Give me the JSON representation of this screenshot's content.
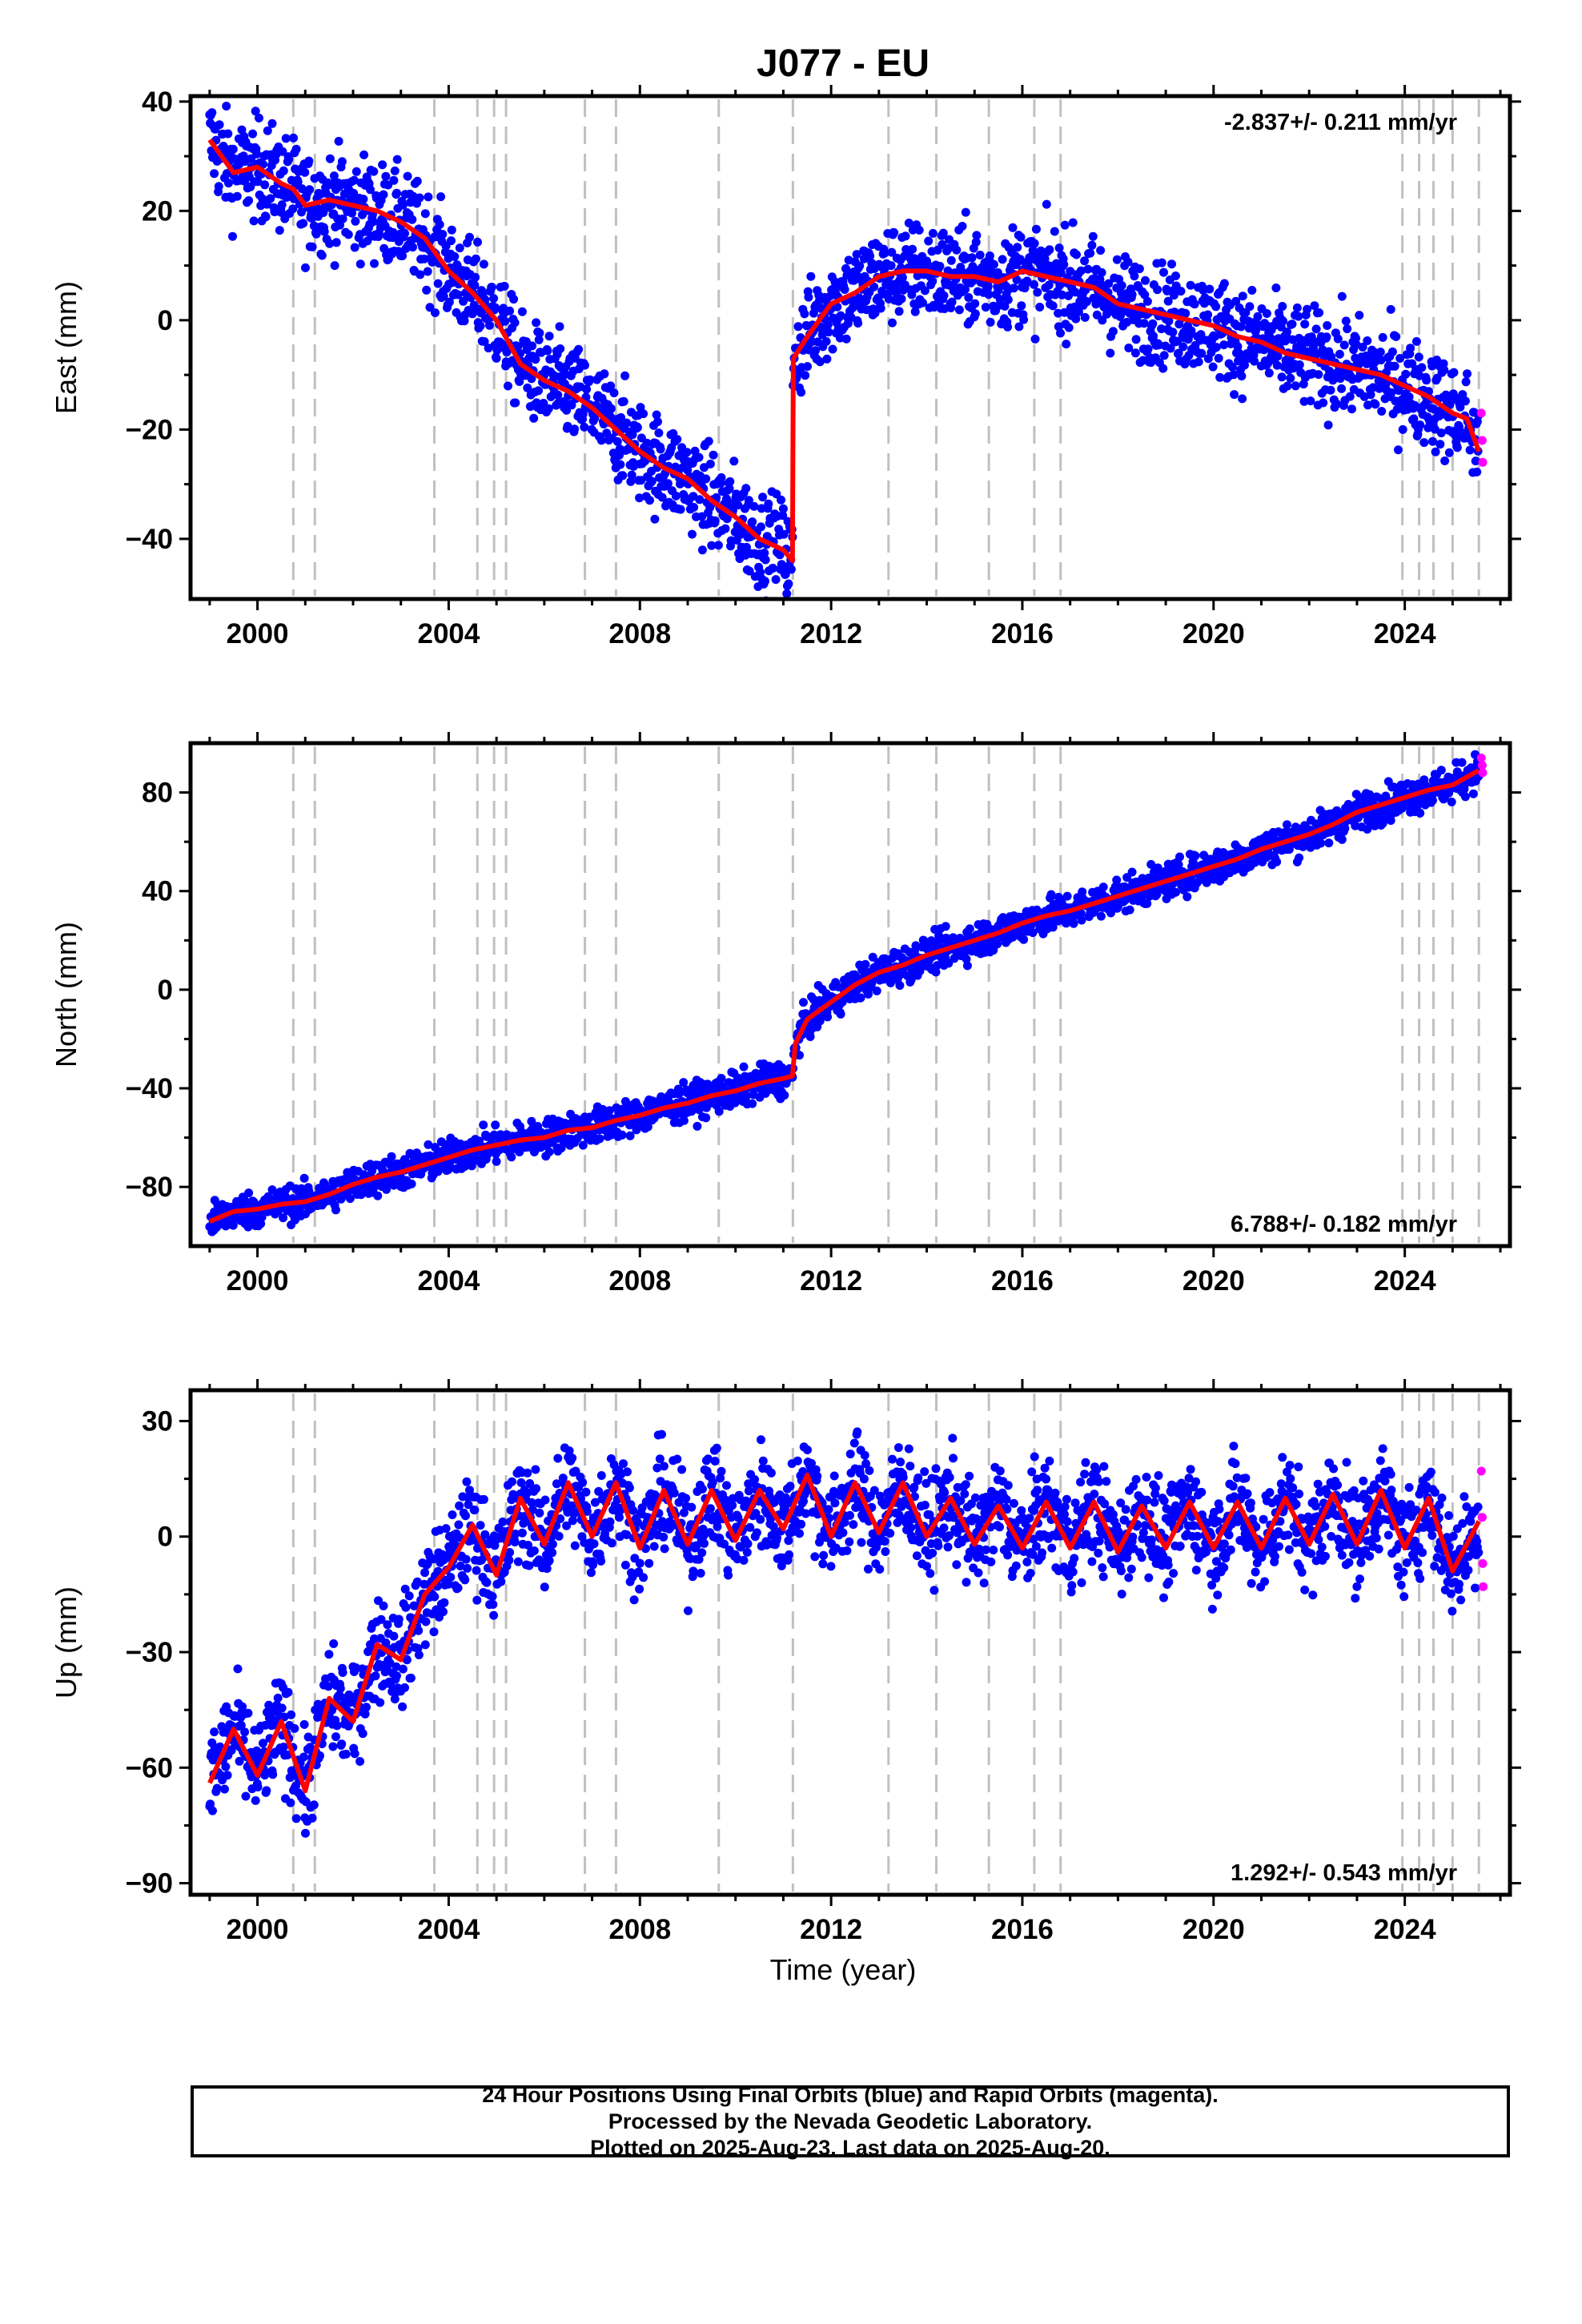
{
  "chart_data": {
    "type": "scatter",
    "title": "J077 - EU",
    "xlabel": "Time (year)",
    "xlim": [
      1998.6,
      2026.2
    ],
    "xticks": [
      2000,
      2004,
      2008,
      2012,
      2016,
      2020,
      2024
    ],
    "xtick_labels": [
      "2000",
      "2004",
      "2008",
      "2012",
      "2016",
      "2020",
      "2024"
    ],
    "event_lines": [
      2000.75,
      2001.2,
      2003.7,
      2004.6,
      2004.95,
      2005.2,
      2006.85,
      2007.5,
      2009.65,
      2011.2,
      2013.2,
      2014.2,
      2015.3,
      2016.25,
      2016.8,
      2023.95,
      2024.3,
      2024.6,
      2025.0,
      2025.55
    ],
    "colors": {
      "final": "#0000ff",
      "rapid": "#ff00ff",
      "model": "#ff0000",
      "event": "#c0c0c0"
    },
    "legend": "none",
    "grid": false,
    "panels": [
      {
        "ylabel": "East (mm)",
        "ylim": [
          -51,
          41
        ],
        "yticks": [
          40,
          20,
          0,
          -20,
          -40
        ],
        "ytick_labels": [
          "40",
          "20",
          "0",
          "−20",
          "−40"
        ],
        "rate_label": "-2.837+/- 0.211 mm/yr",
        "rate_position": "top-right",
        "series": [
          {
            "kind": "final",
            "x": [
              1999.0,
              1999.5,
              2000.0,
              2000.5,
              2000.75,
              2001.0,
              2001.5,
              2002.0,
              2002.5,
              2003.0,
              2003.5,
              2004.0,
              2004.5,
              2005.0,
              2005.5,
              2006.0,
              2006.5,
              2007.0,
              2007.5,
              2008.0,
              2008.5,
              2009.0,
              2009.5,
              2010.0,
              2010.5,
              2011.0,
              2011.19,
              2011.21,
              2011.5,
              2012.0,
              2012.5,
              2013.0,
              2013.5,
              2014.0,
              2014.5,
              2015.0,
              2015.5,
              2016.0,
              2016.5,
              2017.0,
              2017.5,
              2018.0,
              2018.5,
              2019.0,
              2019.5,
              2020.0,
              2020.5,
              2021.0,
              2021.5,
              2022.0,
              2022.5,
              2023.0,
              2023.5,
              2024.0,
              2024.5,
              2025.0,
              2025.3,
              2025.55
            ],
            "y": [
              33,
              27,
              28,
              25,
              24,
              21,
              22,
              21,
              20,
              18,
              15,
              9,
              5,
              0,
              -8,
              -11,
              -13,
              -16,
              -20,
              -24,
              -27,
              -29,
              -33,
              -36,
              -40,
              -42,
              -44,
              -7,
              -3,
              3,
              5,
              8,
              9,
              9,
              8,
              8,
              7,
              9,
              8,
              7,
              6,
              3,
              2,
              1,
              0,
              -1,
              -3,
              -4,
              -6,
              -7,
              -8,
              -9,
              -10,
              -12,
              -14,
              -17,
              -18,
              -24
            ]
          },
          {
            "kind": "rapid",
            "x": [
              2025.6,
              2025.62,
              2025.63
            ],
            "y": [
              -17,
              -22,
              -26
            ]
          }
        ]
      },
      {
        "ylabel": "North (mm)",
        "ylim": [
          -104,
          100
        ],
        "yticks": [
          80,
          40,
          0,
          -40,
          -80
        ],
        "ytick_labels": [
          "80",
          "40",
          "0",
          "−40",
          "−80"
        ],
        "rate_label": "6.788+/- 0.182 mm/yr",
        "rate_position": "bottom-right",
        "series": [
          {
            "kind": "final",
            "x": [
              1999.0,
              1999.5,
              2000.0,
              2000.5,
              2001.0,
              2001.5,
              2002.0,
              2002.5,
              2003.0,
              2003.5,
              2004.0,
              2004.5,
              2005.0,
              2005.5,
              2006.0,
              2006.5,
              2007.0,
              2007.5,
              2008.0,
              2008.5,
              2009.0,
              2009.5,
              2010.0,
              2010.5,
              2011.0,
              2011.19,
              2011.25,
              2011.5,
              2012.0,
              2012.5,
              2013.0,
              2013.5,
              2014.0,
              2014.5,
              2015.0,
              2015.5,
              2016.0,
              2016.5,
              2017.0,
              2017.5,
              2018.0,
              2018.5,
              2019.0,
              2019.5,
              2020.0,
              2020.5,
              2021.0,
              2021.5,
              2022.0,
              2022.5,
              2023.0,
              2023.5,
              2024.0,
              2024.5,
              2025.0,
              2025.55
            ],
            "y": [
              -94,
              -90,
              -89,
              -87,
              -86,
              -83,
              -79,
              -76,
              -74,
              -71,
              -68,
              -65,
              -63,
              -61,
              -60,
              -57,
              -56,
              -53,
              -51,
              -48,
              -46,
              -43,
              -41,
              -38,
              -36,
              -35,
              -22,
              -12,
              -5,
              2,
              7,
              10,
              14,
              17,
              20,
              23,
              27,
              30,
              32,
              35,
              38,
              41,
              44,
              47,
              50,
              53,
              57,
              60,
              63,
              67,
              72,
              75,
              78,
              81,
              83,
              89
            ]
          },
          {
            "kind": "rapid",
            "x": [
              2025.6,
              2025.62,
              2025.63
            ],
            "y": [
              94,
              91,
              88
            ]
          }
        ]
      },
      {
        "ylabel": "Up (mm)",
        "ylim": [
          -93,
          38
        ],
        "yticks": [
          30,
          0,
          -30,
          -60,
          -90
        ],
        "ytick_labels": [
          "30",
          "0",
          "−30",
          "−60",
          "−90"
        ],
        "rate_label": "1.292+/- 0.543 mm/yr",
        "rate_position": "bottom-right",
        "series": [
          {
            "kind": "final",
            "x": [
              1999.0,
              1999.5,
              2000.0,
              2000.5,
              2001.0,
              2001.5,
              2002.0,
              2002.5,
              2003.0,
              2003.5,
              2004.0,
              2004.5,
              2005.0,
              2005.5,
              2006.0,
              2006.5,
              2007.0,
              2007.5,
              2008.0,
              2008.5,
              2009.0,
              2009.5,
              2010.0,
              2010.5,
              2011.0,
              2011.5,
              2012.0,
              2012.5,
              2013.0,
              2013.5,
              2014.0,
              2014.5,
              2015.0,
              2015.5,
              2016.0,
              2016.5,
              2017.0,
              2017.5,
              2018.0,
              2018.5,
              2019.0,
              2019.5,
              2020.0,
              2020.5,
              2021.0,
              2021.5,
              2022.0,
              2022.5,
              2023.0,
              2023.5,
              2024.0,
              2024.5,
              2025.0,
              2025.55
            ],
            "y": [
              -64,
              -50,
              -62,
              -48,
              -66,
              -42,
              -48,
              -28,
              -32,
              -15,
              -8,
              3,
              -10,
              10,
              -2,
              14,
              0,
              14,
              -3,
              12,
              -2,
              12,
              -1,
              12,
              2,
              16,
              0,
              14,
              1,
              14,
              0,
              10,
              -2,
              8,
              -3,
              9,
              -3,
              9,
              -4,
              8,
              -3,
              9,
              -3,
              9,
              -3,
              10,
              -2,
              11,
              -2,
              12,
              -3,
              10,
              -9,
              4
            ]
          },
          {
            "kind": "rapid",
            "x": [
              2025.6,
              2025.62,
              2025.63,
              2025.64
            ],
            "y": [
              17,
              5,
              -7,
              -13
            ]
          }
        ]
      }
    ]
  },
  "footer": {
    "line1": "24 Hour Positions Using Final Orbits (blue) and Rapid Orbits (magenta).",
    "line2": "Processed by the Nevada Geodetic Laboratory.",
    "line3": "Plotted on 2025-Aug-23. Last data on 2025-Aug-20."
  }
}
